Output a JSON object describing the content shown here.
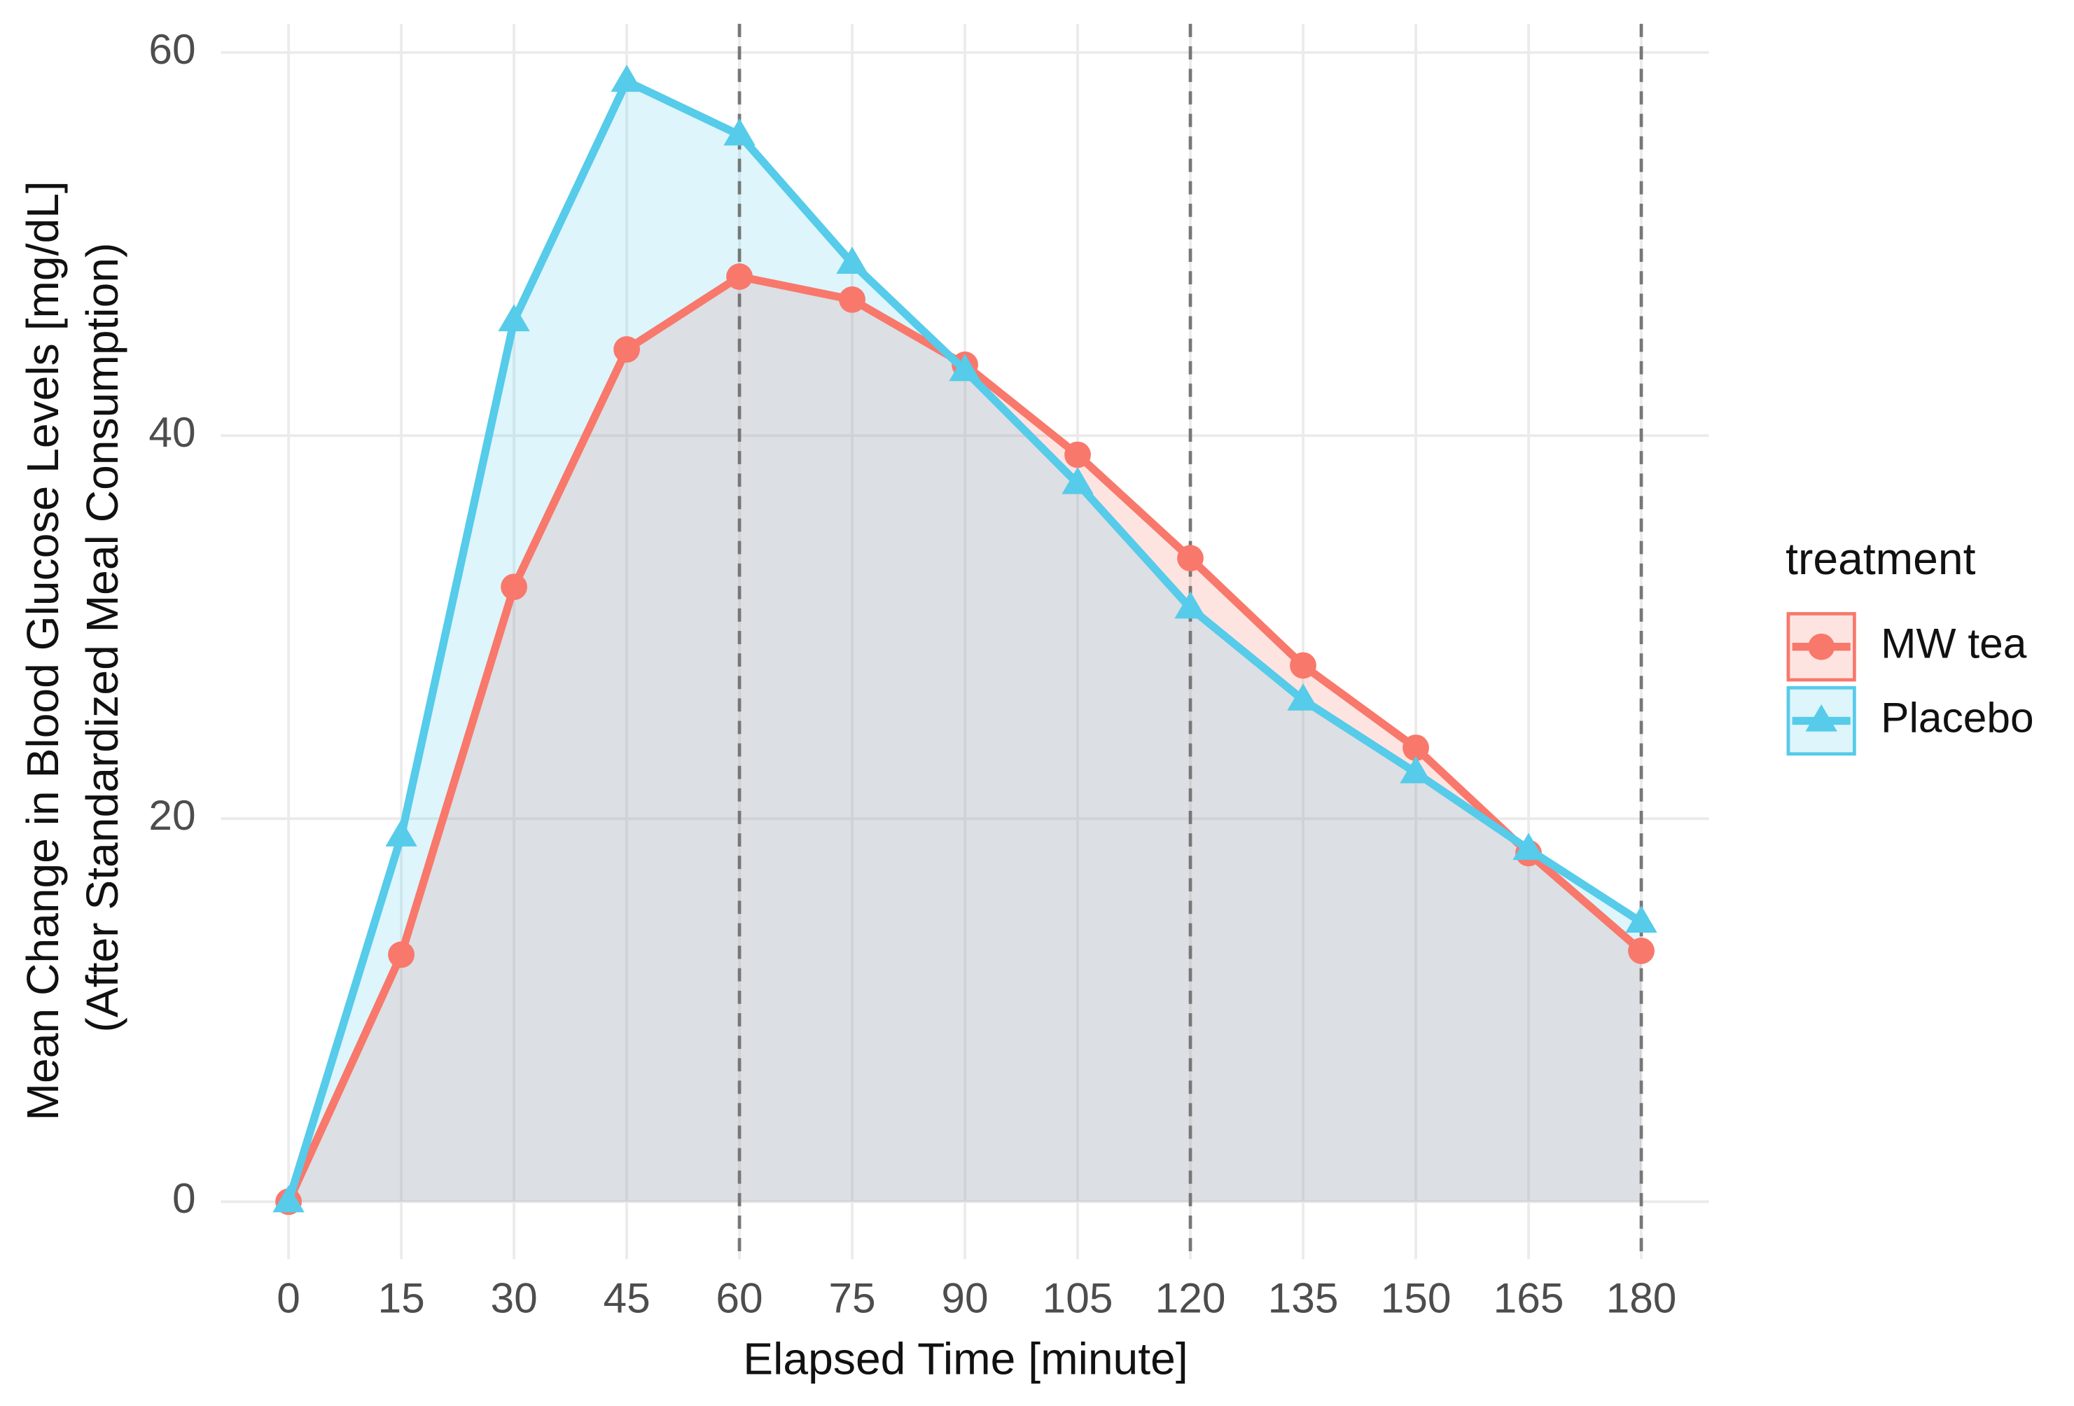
{
  "chart_data": {
    "type": "line",
    "x_label": "Elapsed Time [minute]",
    "y_label": [
      "Mean Change in Blood Glucose Levels [mg/dL]",
      "(After Standardized Meal Consumption)"
    ],
    "legend_title": "treatment",
    "x": [
      0,
      15,
      30,
      45,
      60,
      75,
      90,
      105,
      120,
      135,
      150,
      165,
      180
    ],
    "series": [
      {
        "name": "MW tea",
        "color": "#f8786b",
        "marker": "circle",
        "values": [
          0,
          12.9,
          32.1,
          44.5,
          48.3,
          47.1,
          43.7,
          39.0,
          33.6,
          28.0,
          23.7,
          18.2,
          13.1
        ]
      },
      {
        "name": "Placebo",
        "color": "#56cbea",
        "marker": "triangle",
        "values": [
          0,
          19.1,
          46.0,
          58.5,
          55.7,
          49.0,
          43.4,
          37.5,
          31.0,
          26.2,
          22.4,
          18.4,
          14.6
        ]
      }
    ],
    "xlim": [
      -9,
      189
    ],
    "ylim": [
      -3,
      61.5
    ],
    "xticks": [
      0,
      15,
      30,
      45,
      60,
      75,
      90,
      105,
      120,
      135,
      150,
      165,
      180
    ],
    "yticks": [
      0,
      20,
      40,
      60
    ],
    "vlines": [
      60,
      120,
      180
    ],
    "grid": true,
    "area_fill": true,
    "legend": "right"
  }
}
